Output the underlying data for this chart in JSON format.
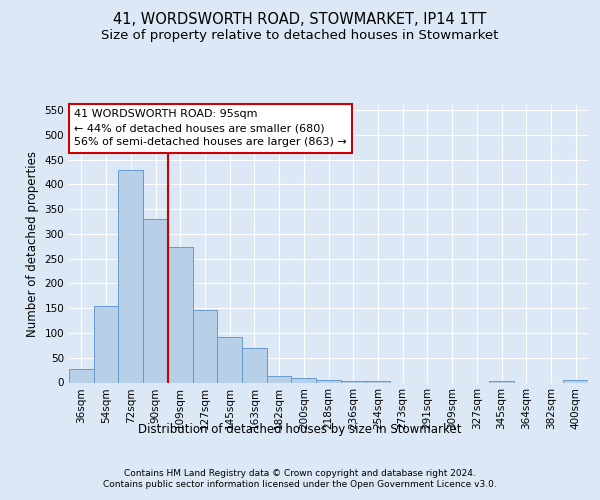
{
  "title_line1": "41, WORDSWORTH ROAD, STOWMARKET, IP14 1TT",
  "title_line2": "Size of property relative to detached houses in Stowmarket",
  "xlabel": "Distribution of detached houses by size in Stowmarket",
  "ylabel": "Number of detached properties",
  "footer_line1": "Contains HM Land Registry data © Crown copyright and database right 2024.",
  "footer_line2": "Contains public sector information licensed under the Open Government Licence v3.0.",
  "categories": [
    "36sqm",
    "54sqm",
    "72sqm",
    "90sqm",
    "109sqm",
    "127sqm",
    "145sqm",
    "163sqm",
    "182sqm",
    "200sqm",
    "218sqm",
    "236sqm",
    "254sqm",
    "273sqm",
    "291sqm",
    "309sqm",
    "327sqm",
    "345sqm",
    "364sqm",
    "382sqm",
    "400sqm"
  ],
  "values": [
    28,
    155,
    428,
    330,
    273,
    146,
    92,
    69,
    13,
    10,
    6,
    4,
    4,
    0,
    0,
    0,
    0,
    4,
    0,
    0,
    5
  ],
  "bar_color": "#b8cfe8",
  "bar_edge_color": "#6699cc",
  "bar_width": 1.0,
  "vline_index": 3.5,
  "vline_color": "#cc0000",
  "annotation_line1": "41 WORDSWORTH ROAD: 95sqm",
  "annotation_line2": "← 44% of detached houses are smaller (680)",
  "annotation_line3": "56% of semi-detached houses are larger (863) →",
  "annotation_box_facecolor": "#ffffff",
  "annotation_box_edgecolor": "#cc0000",
  "ylim": [
    0,
    560
  ],
  "yticks": [
    0,
    50,
    100,
    150,
    200,
    250,
    300,
    350,
    400,
    450,
    500,
    550
  ],
  "background_color": "#dce8f5",
  "plot_bg_color": "#dce8f5",
  "grid_color": "#ffffff",
  "title_fontsize": 10.5,
  "subtitle_fontsize": 9.5,
  "ylabel_fontsize": 8.5,
  "xlabel_fontsize": 8.5,
  "tick_fontsize": 7.5,
  "annotation_fontsize": 8,
  "footer_fontsize": 6.5
}
